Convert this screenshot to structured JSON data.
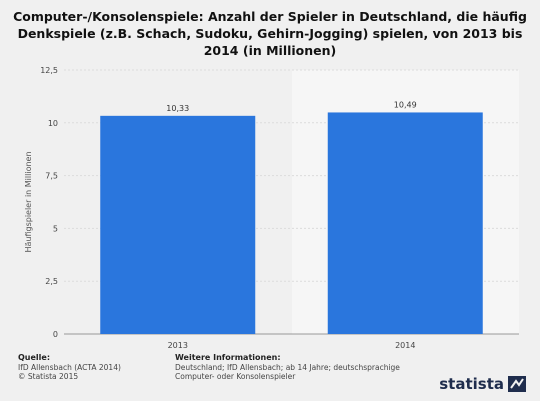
{
  "title": "Computer-/Konsolenspiele: Anzahl der Spieler in Deutschland, die häufig Denkspiele (z.B. Schach, Sudoku, Gehirn-Jogging) spielen, von 2013 bis 2014 (in Millionen)",
  "chart_data": {
    "type": "bar",
    "categories": [
      "2013",
      "2014"
    ],
    "values": [
      10.33,
      10.49
    ],
    "value_labels": [
      "10,33",
      "10,49"
    ],
    "ylabel": "Häufigspieler in Millionen",
    "xlabel": "",
    "ylim": [
      0,
      12.5
    ],
    "yticks": [
      "0",
      "2,5",
      "5",
      "7,5",
      "10",
      "12,5"
    ],
    "grid": true,
    "legend": "none",
    "bar_color": "#2a76dd"
  },
  "footer": {
    "source_heading": "Quelle:",
    "source_line1": "IfD Allensbach (ACTA 2014)",
    "source_line2": "© Statista 2015",
    "info_heading": "Weitere Informationen:",
    "info_line1": "Deutschland; IfD Allensbach; ab 14 Jahre; deutschsprachige",
    "info_line2": "Computer- oder Konsolenspieler",
    "logo": "statista"
  }
}
